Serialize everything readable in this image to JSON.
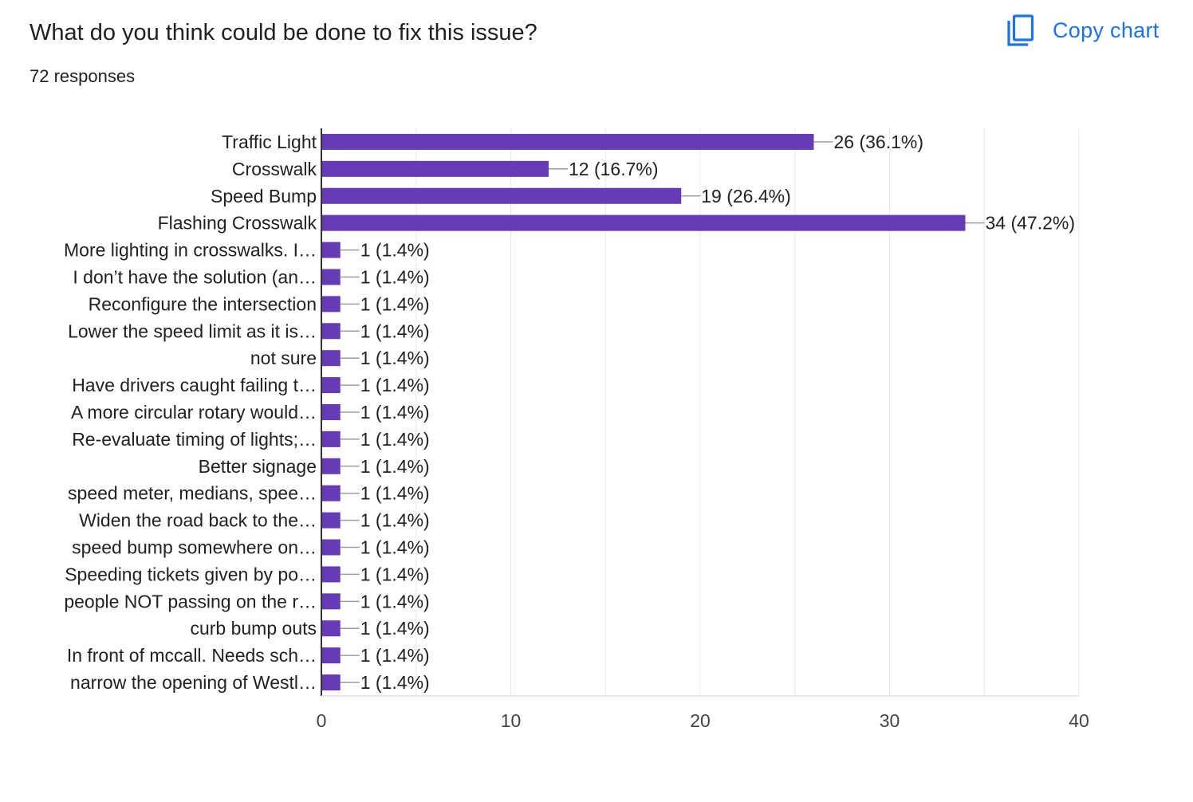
{
  "header": {
    "title": "What do you think could be done to fix this issue?",
    "responses": "72 responses",
    "copy_label": "Copy chart",
    "copy_icon": "copy-icon"
  },
  "colors": {
    "bar": "#673ab7",
    "accent": "#1a73e8",
    "grid": "#e8e8e8",
    "axis": "#333333",
    "leader": "#9e9e9e",
    "text": "#202124"
  },
  "chart_data": {
    "type": "bar",
    "orientation": "horizontal",
    "title": "",
    "xlabel": "",
    "ylabel": "",
    "xlim": [
      0,
      40
    ],
    "ticks": [
      0,
      10,
      20,
      30,
      40
    ],
    "grid": true,
    "legend": "none",
    "categories": [
      "Traffic Light",
      "Crosswalk",
      "Speed Bump",
      "Flashing Crosswalk",
      "More lighting in crosswalks. I…",
      "I don’t have the solution (an…",
      "Reconfigure the intersection",
      "Lower the speed limit as it is…",
      "not sure",
      "Have drivers caught failing t…",
      "A more circular rotary would…",
      "Re-evaluate timing of lights;…",
      "Better signage",
      "speed meter, medians, spee…",
      "Widen the road back to the…",
      "speed bump somewhere on…",
      "Speeding tickets given by po…",
      "people NOT passing on the r…",
      "curb bump outs",
      "In front of mccall. Needs sch…",
      "narrow the opening of Westl…"
    ],
    "values": [
      26,
      12,
      19,
      34,
      1,
      1,
      1,
      1,
      1,
      1,
      1,
      1,
      1,
      1,
      1,
      1,
      1,
      1,
      1,
      1,
      1
    ],
    "labels": [
      "26 (36.1%)",
      "12 (16.7%)",
      "19 (26.4%)",
      "34 (47.2%)",
      "1 (1.4%)",
      "1 (1.4%)",
      "1 (1.4%)",
      "1 (1.4%)",
      "1 (1.4%)",
      "1 (1.4%)",
      "1 (1.4%)",
      "1 (1.4%)",
      "1 (1.4%)",
      "1 (1.4%)",
      "1 (1.4%)",
      "1 (1.4%)",
      "1 (1.4%)",
      "1 (1.4%)",
      "1 (1.4%)",
      "1 (1.4%)",
      "1 (1.4%)"
    ]
  }
}
